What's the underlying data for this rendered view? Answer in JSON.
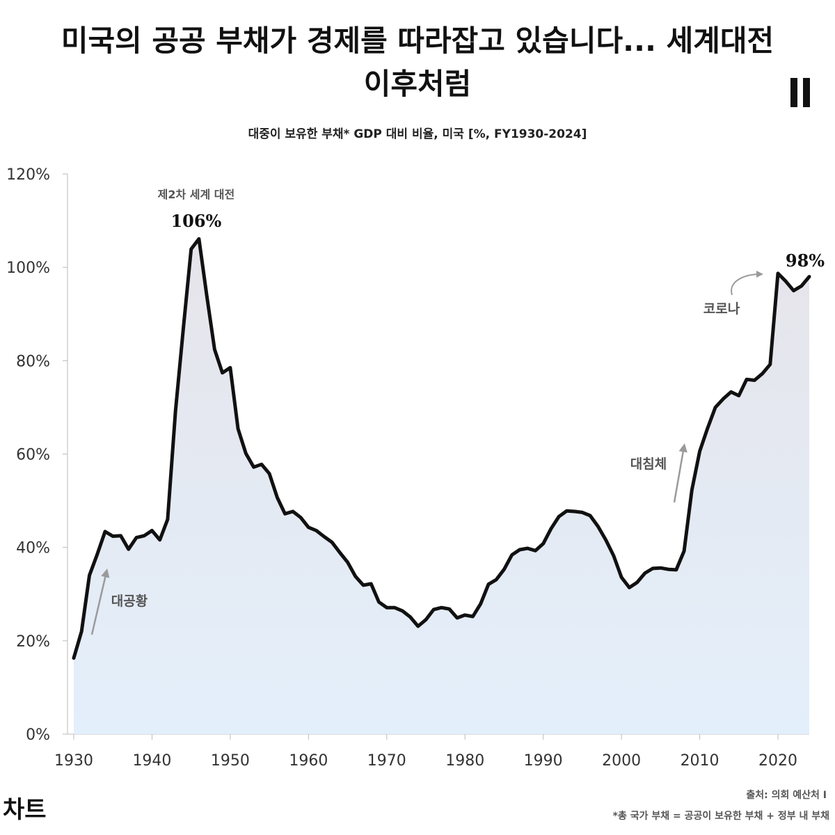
{
  "header": {
    "title_line1": "미국의 공공 부채가 경제를 따라잡고 있습니다... 세계대전",
    "title_line2": "이후처럼",
    "subtitle": "대중이 보유한 부채* GDP 대비 비율, 미국 [%, FY1930-2024]"
  },
  "footer": {
    "brand": "차트",
    "source": "출처: 의회 예산처 I",
    "footnote": "*총 국가 부채 = 공공이 보유한 부채 + 정부 내 부채"
  },
  "colors": {
    "line": "#111111",
    "fill_top": "#e6e4ea",
    "fill_bottom": "#e3effb",
    "arrow": "#9a9a9a",
    "axis": "#bbbbbb"
  },
  "chart_data": {
    "type": "area",
    "title": "대중이 보유한 부채* GDP 대비 비율, 미국 [%, FY1930-2024]",
    "xlabel": "",
    "ylabel": "",
    "xlim": [
      1930,
      2024
    ],
    "ylim": [
      0,
      120
    ],
    "x_ticks": [
      1930,
      1940,
      1950,
      1960,
      1970,
      1980,
      1990,
      2000,
      2010,
      2020
    ],
    "x_tick_labels": [
      "1930",
      "1940",
      "1950",
      "1960",
      "1970",
      "1980",
      "1990",
      "2000",
      "2010",
      "2020"
    ],
    "y_ticks": [
      0,
      20,
      40,
      60,
      80,
      100,
      120
    ],
    "y_tick_labels": [
      "0%",
      "20%",
      "40%",
      "60%",
      "80%",
      "100%",
      "120%"
    ],
    "grid": false,
    "series": [
      {
        "x": [
          1930,
          1931,
          1932,
          1933,
          1934,
          1935,
          1936,
          1937,
          1938,
          1939,
          1940,
          1941,
          1942,
          1943,
          1944,
          1945,
          1946,
          1947,
          1948,
          1949,
          1950,
          1951,
          1952,
          1953,
          1954,
          1955,
          1956,
          1957,
          1958,
          1959,
          1960,
          1961,
          1962,
          1963,
          1964,
          1965,
          1966,
          1967,
          1968,
          1969,
          1970,
          1971,
          1972,
          1973,
          1974,
          1975,
          1976,
          1977,
          1978,
          1979,
          1980,
          1981,
          1982,
          1983,
          1984,
          1985,
          1986,
          1987,
          1988,
          1989,
          1990,
          1991,
          1992,
          1993,
          1994,
          1995,
          1996,
          1997,
          1998,
          1999,
          2000,
          2001,
          2002,
          2003,
          2004,
          2005,
          2006,
          2007,
          2008,
          2009,
          2010,
          2011,
          2012,
          2013,
          2014,
          2015,
          2016,
          2017,
          2018,
          2019,
          2020,
          2021,
          2022,
          2023,
          2024
        ],
        "y": [
          16.3,
          22.0,
          34.0,
          38.5,
          43.4,
          42.4,
          42.5,
          39.6,
          42.1,
          42.5,
          43.6,
          41.6,
          46.0,
          69.2,
          86.8,
          103.9,
          106.1,
          93.9,
          82.4,
          77.4,
          78.5,
          65.4,
          60.1,
          57.2,
          57.8,
          55.8,
          50.7,
          47.2,
          47.7,
          46.4,
          44.3,
          43.6,
          42.3,
          41.1,
          38.9,
          36.8,
          33.8,
          31.9,
          32.2,
          28.3,
          27.1,
          27.1,
          26.4,
          25.1,
          23.1,
          24.5,
          26.7,
          27.1,
          26.8,
          24.9,
          25.5,
          25.2,
          27.9,
          32.1,
          33.1,
          35.3,
          38.4,
          39.5,
          39.8,
          39.3,
          40.8,
          44.0,
          46.6,
          47.8,
          47.7,
          47.5,
          46.8,
          44.5,
          41.6,
          38.2,
          33.6,
          31.4,
          32.5,
          34.5,
          35.5,
          35.6,
          35.3,
          35.2,
          39.2,
          52.3,
          60.6,
          65.5,
          70.0,
          71.8,
          73.3,
          72.5,
          76.0,
          75.8,
          77.2,
          79.2,
          98.7,
          97.0,
          95.0,
          96.0,
          98.0
        ]
      }
    ],
    "annotations": [
      {
        "text": "제2차 세계 대전",
        "x": 1946,
        "y": 106
      },
      {
        "text": "106%",
        "x": 1946,
        "y": 106
      },
      {
        "text": "98%",
        "x": 2024,
        "y": 98
      },
      {
        "text": "코로나",
        "x": 2020,
        "y": 98.7
      },
      {
        "text": "대침체",
        "x": 2009,
        "y": 52.3
      },
      {
        "text": "대공황",
        "x": 1934,
        "y": 43.4
      }
    ]
  }
}
